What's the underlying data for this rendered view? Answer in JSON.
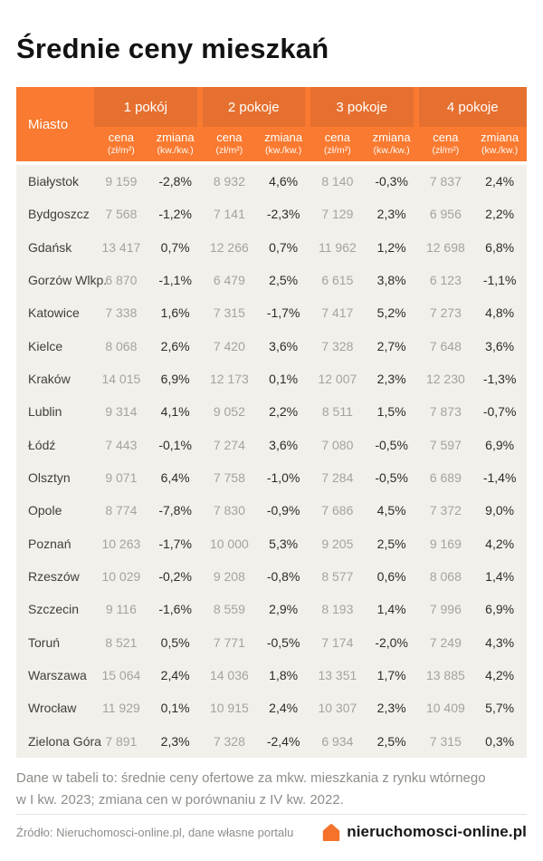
{
  "title": "Średnie ceny mieszkań",
  "chart_data": {
    "type": "table",
    "title": "Średnie ceny mieszkań",
    "city_header": "Miasto",
    "column_groups": [
      "1 pokój",
      "2 pokoje",
      "3 pokoje",
      "4 pokoje"
    ],
    "subcolumns": {
      "price_label": "cena",
      "price_unit": "(zł/m²)",
      "change_label": "zmiana",
      "change_unit": "(kw./kw.)"
    },
    "rows": [
      {
        "city": "Białystok",
        "values": [
          "9 159",
          "-2,8%",
          "8 932",
          "4,6%",
          "8 140",
          "-0,3%",
          "7 837",
          "2,4%"
        ]
      },
      {
        "city": "Bydgoszcz",
        "values": [
          "7 568",
          "-1,2%",
          "7 141",
          "-2,3%",
          "7 129",
          "2,3%",
          "6 956",
          "2,2%"
        ]
      },
      {
        "city": "Gdańsk",
        "values": [
          "13 417",
          "0,7%",
          "12 266",
          "0,7%",
          "11 962",
          "1,2%",
          "12 698",
          "6,8%"
        ]
      },
      {
        "city": "Gorzów Wlkp.",
        "values": [
          "6 870",
          "-1,1%",
          "6 479",
          "2,5%",
          "6 615",
          "3,8%",
          "6 123",
          "-1,1%"
        ]
      },
      {
        "city": "Katowice",
        "values": [
          "7 338",
          "1,6%",
          "7 315",
          "-1,7%",
          "7 417",
          "5,2%",
          "7 273",
          "4,8%"
        ]
      },
      {
        "city": "Kielce",
        "values": [
          "8 068",
          "2,6%",
          "7 420",
          "3,6%",
          "7 328",
          "2,7%",
          "7 648",
          "3,6%"
        ]
      },
      {
        "city": "Kraków",
        "values": [
          "14 015",
          "6,9%",
          "12 173",
          "0,1%",
          "12 007",
          "2,3%",
          "12 230",
          "-1,3%"
        ]
      },
      {
        "city": "Lublin",
        "values": [
          "9 314",
          "4,1%",
          "9 052",
          "2,2%",
          "8 511",
          "1,5%",
          "7 873",
          "-0,7%"
        ]
      },
      {
        "city": "Łódź",
        "values": [
          "7 443",
          "-0,1%",
          "7 274",
          "3,6%",
          "7 080",
          "-0,5%",
          "7 597",
          "6,9%"
        ]
      },
      {
        "city": "Olsztyn",
        "values": [
          "9 071",
          "6,4%",
          "7 758",
          "-1,0%",
          "7 284",
          "-0,5%",
          "6 689",
          "-1,4%"
        ]
      },
      {
        "city": "Opole",
        "values": [
          "8 774",
          "-7,8%",
          "7 830",
          "-0,9%",
          "7 686",
          "4,5%",
          "7 372",
          "9,0%"
        ]
      },
      {
        "city": "Poznań",
        "values": [
          "10 263",
          "-1,7%",
          "10 000",
          "5,3%",
          "9 205",
          "2,5%",
          "9 169",
          "4,2%"
        ]
      },
      {
        "city": "Rzeszów",
        "values": [
          "10 029",
          "-0,2%",
          "9 208",
          "-0,8%",
          "8 577",
          "0,6%",
          "8 068",
          "1,4%"
        ]
      },
      {
        "city": "Szczecin",
        "values": [
          "9 116",
          "-1,6%",
          "8 559",
          "2,9%",
          "8 193",
          "1,4%",
          "7 996",
          "6,9%"
        ]
      },
      {
        "city": "Toruń",
        "values": [
          "8 521",
          "0,5%",
          "7 771",
          "-0,5%",
          "7 174",
          "-2,0%",
          "7 249",
          "4,3%"
        ]
      },
      {
        "city": "Warszawa",
        "values": [
          "15 064",
          "2,4%",
          "14 036",
          "1,8%",
          "13 351",
          "1,7%",
          "13 885",
          "4,2%"
        ]
      },
      {
        "city": "Wrocław",
        "values": [
          "11 929",
          "0,1%",
          "10 915",
          "2,4%",
          "10 307",
          "2,3%",
          "10 409",
          "5,7%"
        ]
      },
      {
        "city": "Zielona Góra",
        "values": [
          "7 891",
          "2,3%",
          "7 328",
          "-2,4%",
          "6 934",
          "2,5%",
          "7 315",
          "0,3%"
        ]
      }
    ]
  },
  "footnote": {
    "line1": "Dane w tabeli to: średnie ceny ofertowe za mkw. mieszkania z rynku wtórnego",
    "line2": "w I kw. 2023; zmiana cen w porównaniu z IV kw. 2022."
  },
  "source": "Źródło: Nieruchomosci-online.pl, dane własne portalu",
  "logo": {
    "text": "nieruchomosci-online.pl"
  },
  "colors": {
    "header_base": "#F97A30",
    "header_box": "#E6702F",
    "body_bg": "#F2F0EA",
    "accent": "#F4722A",
    "price_text": "#A5A3A0",
    "change_text": "#2D2C29"
  }
}
